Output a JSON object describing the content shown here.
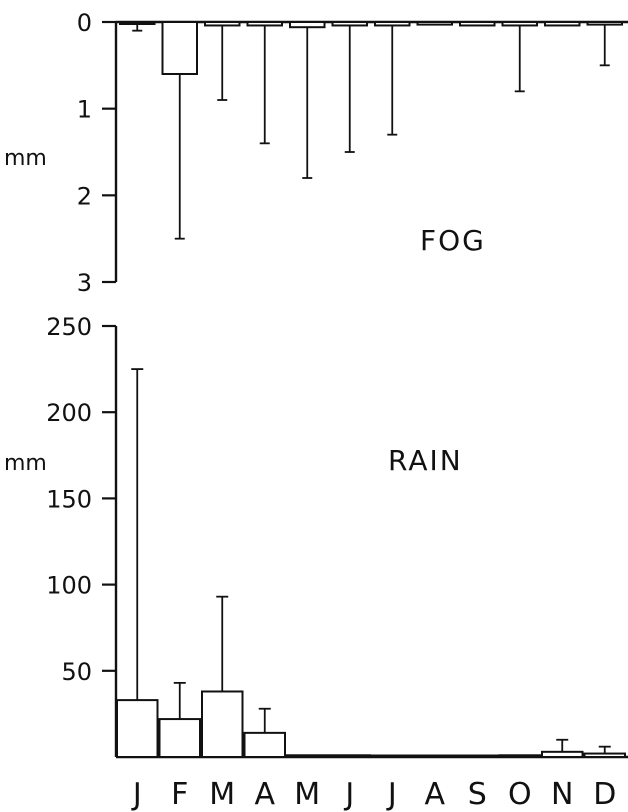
{
  "chart_data": [
    {
      "type": "bar",
      "title": "FOG",
      "ylabel": "mm",
      "xlabel": "",
      "orientation": "inverted",
      "ylim": [
        0,
        3
      ],
      "yticks": [
        0,
        1,
        2,
        3
      ],
      "categories": [
        "J",
        "F",
        "M",
        "A",
        "M",
        "J",
        "J",
        "A",
        "S",
        "O",
        "N",
        "D"
      ],
      "values": [
        0.02,
        0.6,
        0.04,
        0.04,
        0.06,
        0.04,
        0.04,
        0.03,
        0.04,
        0.04,
        0.04,
        0.03
      ],
      "error_upper": [
        0.1,
        2.5,
        0.9,
        1.4,
        1.8,
        1.5,
        1.3,
        null,
        null,
        0.8,
        null,
        0.5
      ],
      "grid": false
    },
    {
      "type": "bar",
      "title": "RAIN",
      "ylabel": "mm",
      "xlabel": "",
      "ylim": [
        0,
        250
      ],
      "yticks": [
        50,
        100,
        150,
        200,
        250
      ],
      "categories": [
        "J",
        "F",
        "M",
        "A",
        "M",
        "J",
        "J",
        "A",
        "S",
        "O",
        "N",
        "D"
      ],
      "values": [
        33,
        22,
        38,
        14,
        1,
        1,
        0,
        0,
        0,
        1,
        3,
        2
      ],
      "error_upper": [
        225,
        43,
        93,
        28,
        null,
        null,
        null,
        null,
        null,
        null,
        10,
        6
      ],
      "grid": false
    }
  ]
}
